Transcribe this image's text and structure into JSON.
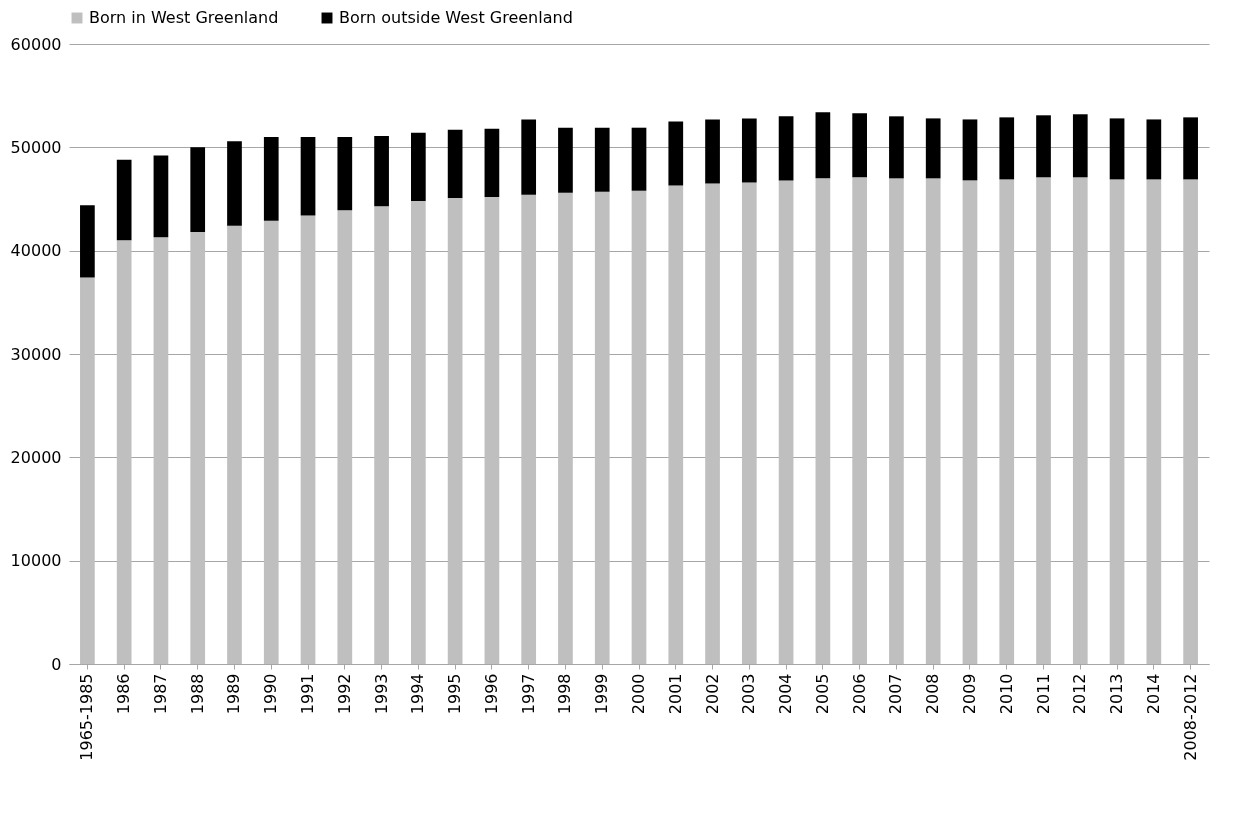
{
  "chart_data": {
    "type": "bar",
    "stacked": true,
    "legend": "top",
    "grid": "y",
    "categories": [
      "1965-1985",
      "1986",
      "1987",
      "1988",
      "1989",
      "1990",
      "1991",
      "1992",
      "1993",
      "1994",
      "1995",
      "1996",
      "1997",
      "1998",
      "1999",
      "2000",
      "2001",
      "2002",
      "2003",
      "2004",
      "2005",
      "2006",
      "2007",
      "2008",
      "2009",
      "2010",
      "2011",
      "2012",
      "2013",
      "2014",
      "2008-2012"
    ],
    "series": [
      {
        "name": "Born in West Greenland",
        "color": "#bfbfbf",
        "values": [
          37400,
          41000,
          41300,
          41800,
          42400,
          42900,
          43400,
          43900,
          44300,
          44800,
          45100,
          45200,
          45400,
          45600,
          45700,
          45800,
          46300,
          46500,
          46600,
          46800,
          47000,
          47100,
          47000,
          47000,
          46800,
          46900,
          47100,
          47100,
          46900,
          46900,
          46900
        ]
      },
      {
        "name": "Born outside West Greenland",
        "color": "#000000",
        "values": [
          7000,
          7800,
          7900,
          8200,
          8200,
          8100,
          7600,
          7100,
          6800,
          6600,
          6600,
          6600,
          7300,
          6300,
          6200,
          6100,
          6200,
          6200,
          6200,
          6200,
          6400,
          6200,
          6000,
          5800,
          5900,
          6000,
          6000,
          6100,
          5900,
          5800,
          6000
        ]
      }
    ],
    "ylim": [
      0,
      60000
    ],
    "yticks": [
      0,
      10000,
      20000,
      30000,
      40000,
      50000,
      60000
    ]
  }
}
